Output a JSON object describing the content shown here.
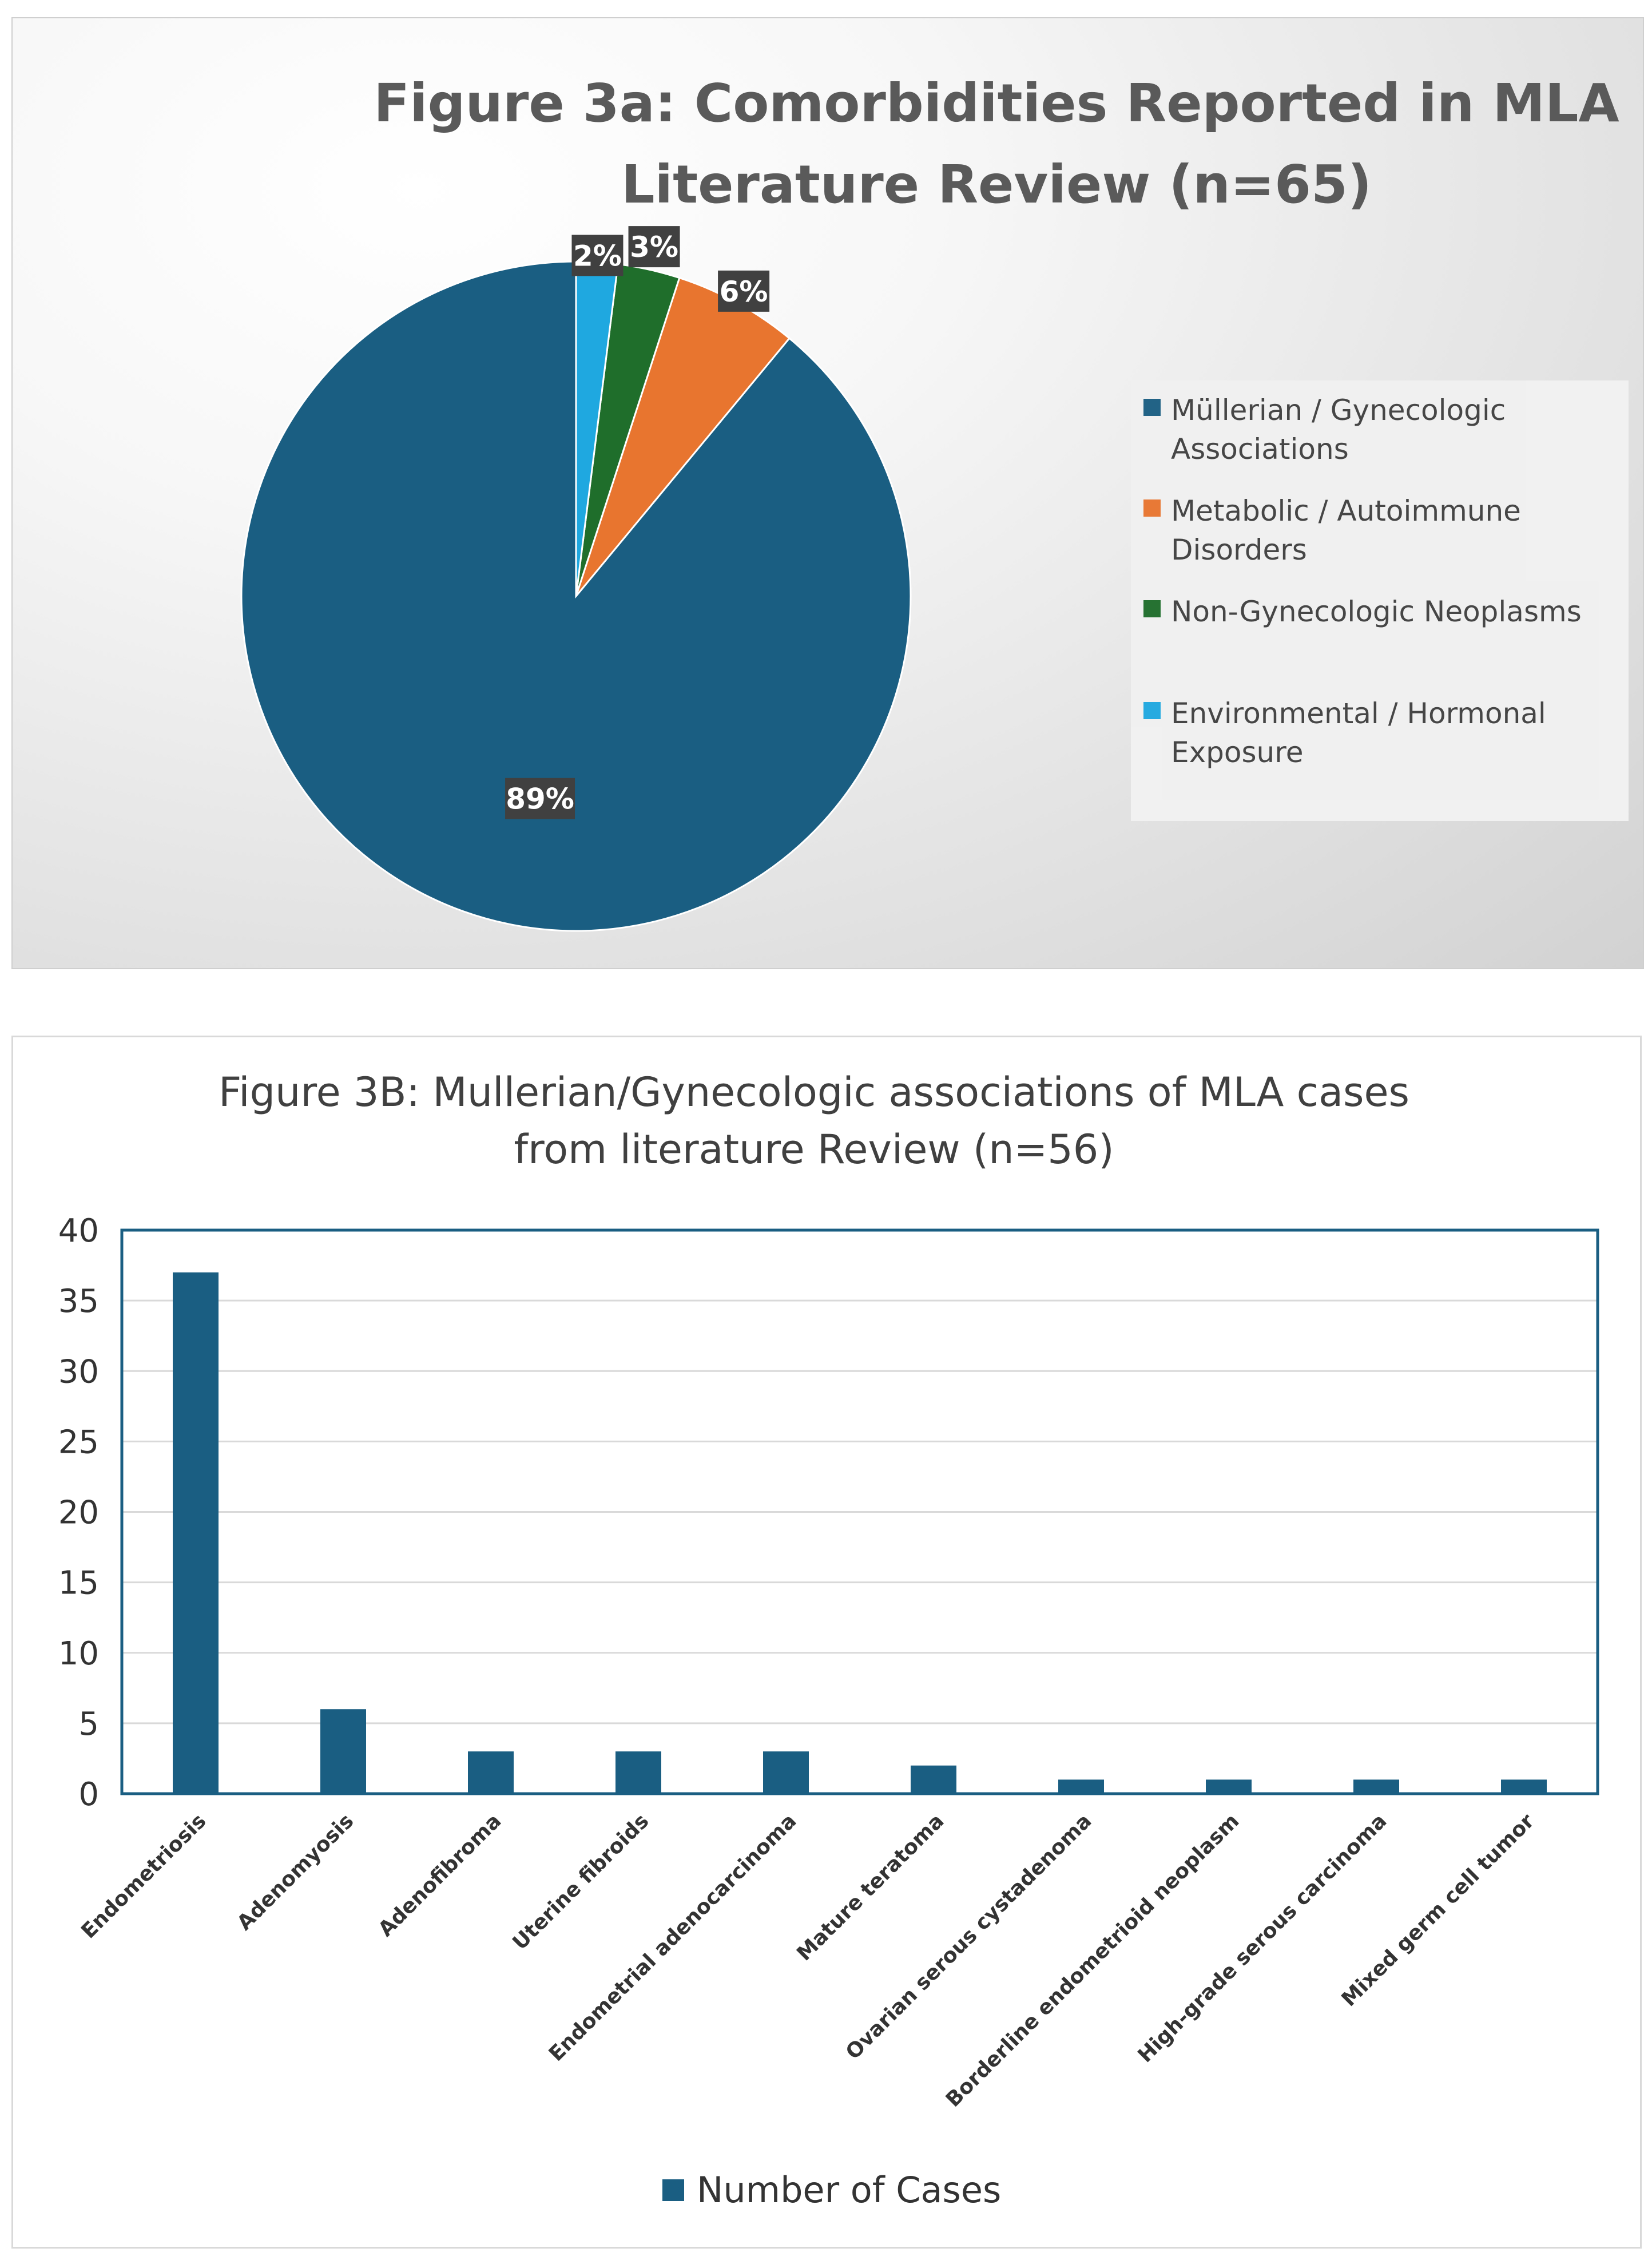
{
  "chart_data": [
    {
      "type": "pie",
      "title_lines": [
        "Figure 3a: Comorbidities Reported in MLA",
        "Literature Review (n=65)"
      ],
      "slices": [
        {
          "label_lines": [
            "Müllerian / Gynecologic",
            "Associations"
          ],
          "value": 89,
          "display": "89%",
          "color": "#1a5e82"
        },
        {
          "label_lines": [
            "Metabolic / Autoimmune",
            "Disorders"
          ],
          "value": 6,
          "display": "6%",
          "color": "#e8752f"
        },
        {
          "label_lines": [
            "Non-Gynecologic Neoplasms"
          ],
          "value": 3,
          "display": "3%",
          "color": "#1f6e2b"
        },
        {
          "label_lines": [
            "Environmental / Hormonal",
            "Exposure"
          ],
          "value": 2,
          "display": "2%",
          "color": "#1fa8e0"
        }
      ],
      "legend_position": "right"
    },
    {
      "type": "bar",
      "title_lines": [
        "Figure 3B: Mullerian/Gynecologic associations of MLA cases",
        "from literature Review (n=56)"
      ],
      "categories": [
        "Endometriosis",
        "Adenomyosis",
        "Adenofibroma",
        "Uterine fibroids",
        "Endometrial adenocarcinoma",
        "Mature teratoma",
        "Ovarian serous cystadenoma",
        "Borderline endometrioid neoplasm",
        "High-grade serous carcinoma",
        "Mixed germ cell tumor"
      ],
      "series": [
        {
          "name": "Number of Cases",
          "values": [
            37,
            6,
            3,
            3,
            3,
            2,
            1,
            1,
            1,
            1
          ],
          "color": "#1a5e82"
        }
      ],
      "ylim": [
        0,
        40
      ],
      "yticks": [
        0,
        5,
        10,
        15,
        20,
        25,
        30,
        35,
        40
      ],
      "grid": true,
      "legend_position": "bottom"
    }
  ]
}
